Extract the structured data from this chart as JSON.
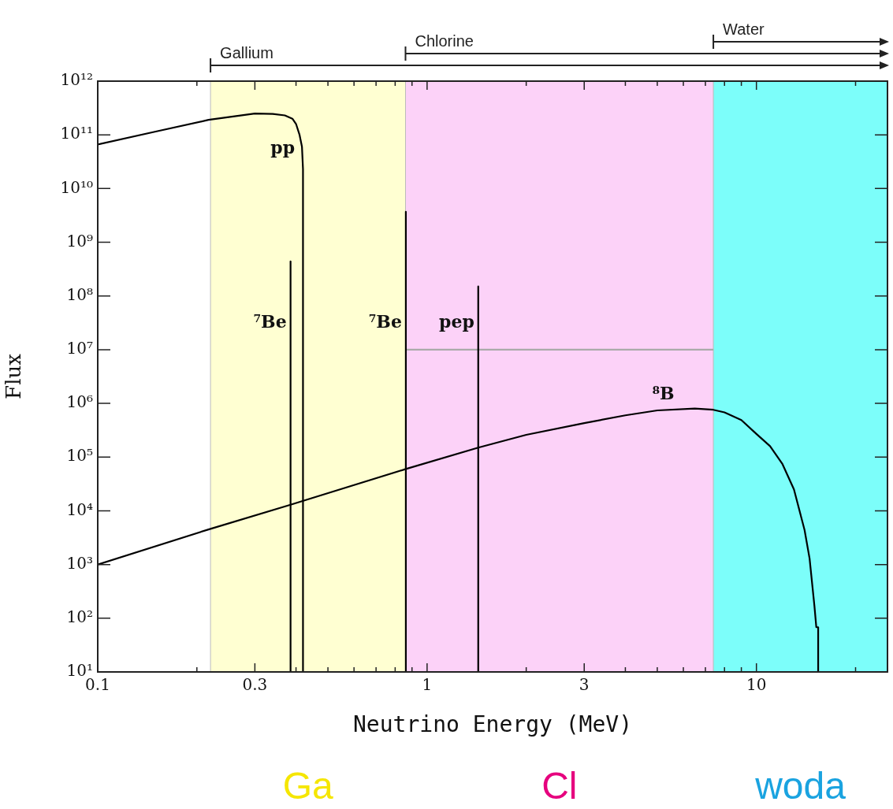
{
  "chart_data": {
    "type": "line",
    "xlabel": "Neutrino Energy (MeV)",
    "ylabel": "Flux",
    "log": "xy",
    "marker": "none",
    "line_style": "solid",
    "legend": false,
    "xlim": [
      0.1,
      25
    ],
    "ylim": [
      10,
      1000000000000
    ],
    "xticks": [
      0.1,
      {
        "value": 0.2,
        "label": null
      },
      0.3,
      {
        "value": 0.4,
        "label": null
      },
      {
        "value": 0.5,
        "label": null
      },
      {
        "value": 0.6,
        "label": null
      },
      {
        "value": 0.7,
        "label": null
      },
      {
        "value": 0.8,
        "label": null
      },
      {
        "value": 0.9,
        "label": null
      },
      1,
      {
        "value": 2,
        "label": null
      },
      3,
      {
        "value": 4,
        "label": null
      },
      {
        "value": 5,
        "label": null
      },
      {
        "value": 6,
        "label": null
      },
      {
        "value": 7,
        "label": null
      },
      {
        "value": 8,
        "label": null
      },
      {
        "value": 9,
        "label": null
      },
      10,
      {
        "value": 20,
        "label": null
      }
    ],
    "yticks": [
      {
        "value": 10,
        "label": "10¹"
      },
      {
        "value": 100,
        "label": "10²"
      },
      {
        "value": 1000,
        "label": "10³"
      },
      {
        "value": 10000,
        "label": "10⁴"
      },
      {
        "value": 100000,
        "label": "10⁵"
      },
      {
        "value": 1000000,
        "label": "10⁶"
      },
      {
        "value": 10000000,
        "label": "10⁷"
      },
      {
        "value": 100000000,
        "label": "10⁸"
      },
      {
        "value": 1000000000,
        "label": "10⁹"
      },
      {
        "value": 10000000000,
        "label": "10¹⁰"
      },
      {
        "value": 100000000000,
        "label": "10¹¹"
      },
      {
        "value": 1000000000000,
        "label": "10¹²"
      }
    ],
    "bands": [
      {
        "axis": "x",
        "from": 0.22,
        "to": 0.86,
        "label": "Gallium",
        "color": "#ffffd2"
      },
      {
        "axis": "x",
        "from": 0.86,
        "to": 7.4,
        "label": "Chlorine",
        "color": "#fcd2f8"
      },
      {
        "axis": "x",
        "from": 7.4,
        "to": 25,
        "label": "Water",
        "color": "#7cfefa"
      }
    ],
    "series": [
      {
        "name": "pp",
        "color": "#000000",
        "x": [
          0.1,
          0.15,
          0.217,
          0.3,
          0.34,
          0.37,
          0.39,
          0.4,
          0.41,
          0.417,
          0.42,
          0.42
        ],
        "values": [
          66000000000,
          115000000000,
          190000000000,
          250000000000,
          245000000000,
          230000000000,
          200000000000,
          160000000000,
          100000000000,
          60000000000,
          23000000000,
          10
        ]
      },
      {
        "name": "⁷Be",
        "color": "#000000",
        "x": [
          0.385,
          0.385
        ],
        "values": [
          440000000,
          10
        ]
      },
      {
        "name": "⁷Be",
        "color": "#000000",
        "x": [
          0.862,
          0.862
        ],
        "values": [
          3700000000,
          10
        ]
      },
      {
        "name": "pep",
        "color": "#000000",
        "x": [
          1.43,
          1.43
        ],
        "values": [
          150000000,
          10
        ]
      },
      {
        "color": "#aaaaaa",
        "x": [
          0.862,
          7.4
        ],
        "values": [
          10000000,
          10000000
        ]
      },
      {
        "name": "⁸B",
        "color": "#000000",
        "x": [
          0.1,
          0.217,
          0.385,
          0.862,
          1.43,
          2,
          3,
          4,
          5,
          6.5,
          7.4,
          8,
          9,
          10,
          11,
          12,
          13,
          14,
          14.5,
          15,
          15.2,
          15.4,
          15.4
        ],
        "values": [
          1000,
          4500,
          13000,
          60000,
          150000,
          260000,
          430000,
          600000,
          740000,
          800000,
          760000,
          680000,
          490000,
          270000,
          160000,
          74000,
          25000,
          4400,
          1300,
          170,
          68,
          68,
          10
        ]
      }
    ],
    "annotations": [
      "Ga",
      "Cl",
      "woda"
    ]
  }
}
